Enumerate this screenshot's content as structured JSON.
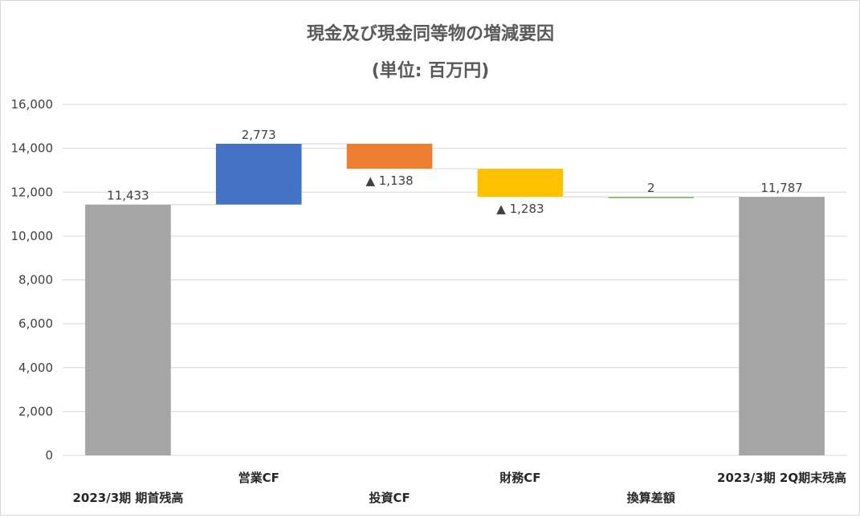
{
  "chart_data": {
    "type": "waterfall",
    "title": "現金及び現金同等物の増減要因",
    "subtitle": "(単位: 百万円)",
    "ylim": [
      0,
      16000
    ],
    "yticks": [
      0,
      2000,
      4000,
      6000,
      8000,
      10000,
      12000,
      14000,
      16000
    ],
    "ytick_labels": [
      "0",
      "2,000",
      "4,000",
      "6,000",
      "8,000",
      "10,000",
      "12,000",
      "14,000",
      "16,000"
    ],
    "grid": true,
    "legend": "none",
    "categories": [
      "2023/3期 期首残高",
      "営業CF",
      "投資CF",
      "財務CF",
      "換算差額",
      "2023/3期 2Q期末残高"
    ],
    "values": [
      11433,
      2773,
      -1138,
      -1283,
      2,
      11787
    ],
    "kinds": [
      "total",
      "delta",
      "delta",
      "delta",
      "delta",
      "total"
    ],
    "data_labels": [
      "11,433",
      "2,773",
      "▲ 1,138",
      "▲ 1,283",
      "2",
      "11,787"
    ],
    "colors": [
      "#a5a5a5",
      "#4472c4",
      "#ed7d31",
      "#ffc000",
      "#70ad47",
      "#a5a5a5"
    ]
  }
}
